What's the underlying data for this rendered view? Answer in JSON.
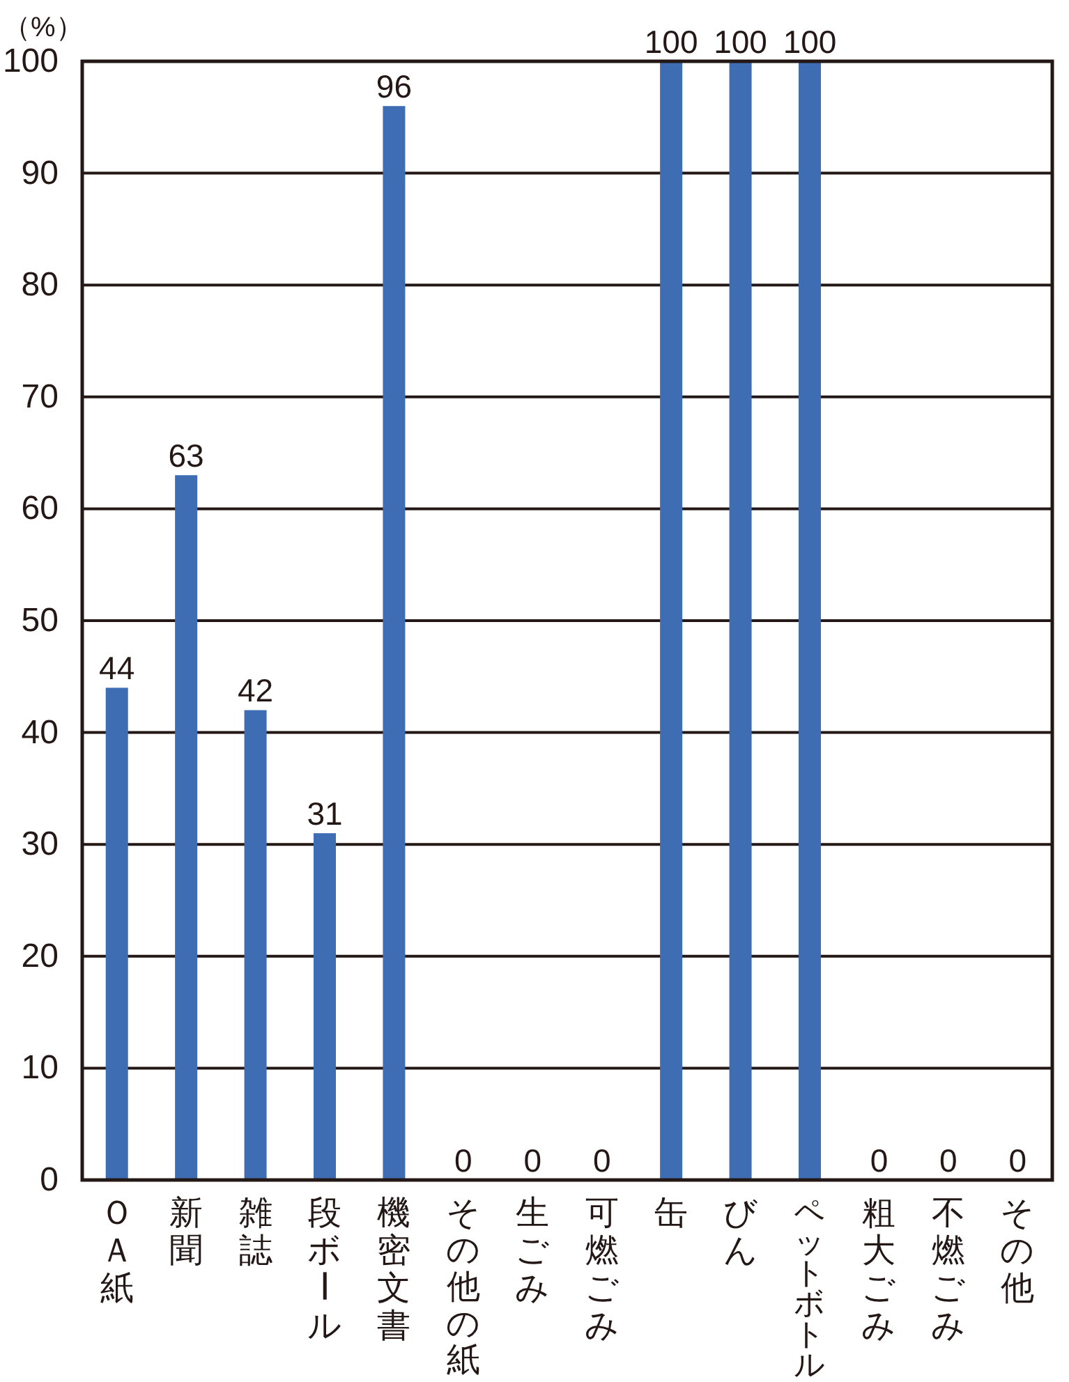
{
  "chart_data": {
    "type": "bar",
    "ylabel": "（%）",
    "categories": [
      "ＯＡ紙",
      "新聞",
      "雑誌",
      "段ボール",
      "機密文書",
      "その他の紙",
      "生ごみ",
      "可燃ごみ",
      "缶",
      "びん",
      "ペットボトル",
      "粗大ごみ",
      "不燃ごみ",
      "その他"
    ],
    "values": [
      44,
      63,
      42,
      31,
      96,
      0,
      0,
      0,
      100,
      100,
      100,
      0,
      0,
      0
    ],
    "color": "#3f6db3",
    "ylim": [
      0,
      100
    ],
    "yticks": [
      0,
      10,
      20,
      30,
      40,
      50,
      60,
      70,
      80,
      90,
      100
    ],
    "grid": "y",
    "data_labels": true
  }
}
